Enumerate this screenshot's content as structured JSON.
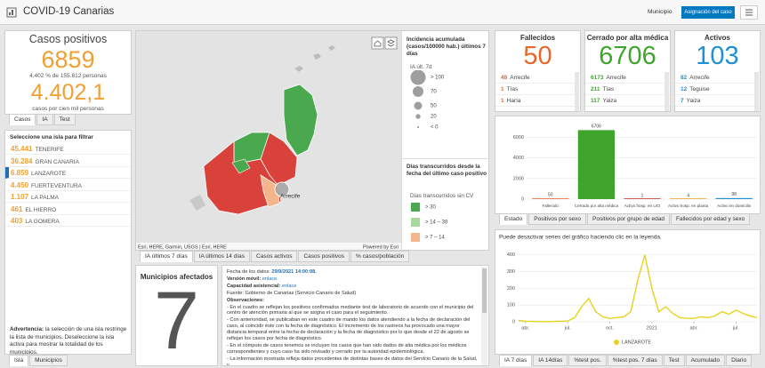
{
  "header": {
    "title": "COVID-19 Canarias",
    "filter_label": "Municipio",
    "button": "Asignación del caso"
  },
  "cases": {
    "title": "Casos positivos",
    "total": 6859,
    "percent_text": "4,402 % de 155.812 personas",
    "rate": "4.402,1",
    "rate_text": "casos por cien mil personas",
    "tabs": [
      "Casos",
      "IA",
      "Test"
    ]
  },
  "islands": {
    "title": "Seleccione una isla para filtrar",
    "selected": 2,
    "rows": [
      {
        "value": "45.441",
        "name": "TENERIFE"
      },
      {
        "value": "36.284",
        "name": "GRAN CANARIA"
      },
      {
        "value": "6.859",
        "name": "LANZAROTE"
      },
      {
        "value": "4.450",
        "name": "FUERTEVENTURA"
      },
      {
        "value": "1.107",
        "name": "LA PALMA"
      },
      {
        "value": "461",
        "name": "EL HIERRO"
      },
      {
        "value": "403",
        "name": "LA GOMERA"
      }
    ],
    "warning_label": "Advertencia:",
    "warning": "la selección de una isla restringe la lista de municipios. Deseleccione la isla activa para mostrar la totalidad de los municipios.",
    "tabs": [
      "Isla",
      "Municipios"
    ]
  },
  "map": {
    "attribution": "Esri, HERE, Garmin, USGS | Esri, HERE",
    "powered": "Powered by Esri",
    "place": "Arrecife",
    "legend_ia": {
      "title": "Incidencia acumulada (casos/100000 hab.) últimos 7 días",
      "layer": "IA últ. 7d",
      "sizes": [
        "> 100",
        "70",
        "50",
        "20",
        "< 0"
      ]
    },
    "legend_days": {
      "title": "Días transcurridos desde la fecha del último caso positivo",
      "layer": "Días transcurridos sin CV",
      "classes": [
        {
          "label": "> 30",
          "color": "#4aa84f"
        },
        {
          "label": "> 14 – 30",
          "color": "#a8d8a0"
        },
        {
          "label": "> 7 – 14",
          "color": "#f5b58c"
        }
      ]
    },
    "tabs": [
      "IA últimos 7 días",
      "IA últimos 14 días",
      "Casos activos",
      "Casos positivos",
      "% casos/población"
    ]
  },
  "municipios": {
    "title": "Municipios afectados",
    "value": 7
  },
  "info": {
    "date_label": "Fecha de los datos:",
    "date": "29/9/2021 14:00:08.",
    "mobile_label": "Versión móvil:",
    "mobile_link": "enlace.",
    "capacity_label": "Capacidad asistencial:",
    "capacity_link": "enlace",
    "source": "Fuente: Gobierno de Canarias (Servicio Canario de Salud)",
    "obs_title": "Observaciones:",
    "notes": [
      "- En el cuadro se reflejan los positivos confirmados mediante test de laboratorio de acuerdo con el municipio del centro de atención primaria al que se asigna el caso para el seguimiento.",
      "- Con anterioridad, se publicaban en este cuadro de mando los datos atendiendo a la fecha de declaración del caso, al coincidir éste con la fecha de diagnóstico. El incremento de los rastreos ha provocado una mayor distancia temporal entre la fecha de declaración y la fecha de diagnóstico por lo que desde el 22 de agosto se reflejan los casos por fecha de diagnóstico.",
      "- En el cómputo de casos tenemos se incluyen los casos que han sido dados de alta médica por los médicos correspondientes y cuyo caso ha sido revisado y cerrado por la autoridad epidemiológica.",
      "- La información mostrada refleja datos procedentes de distintas bases de datos del Servicio Canario de la Salud, y"
    ]
  },
  "stats": [
    {
      "title": "Fallecidos",
      "value": 50,
      "color": "#e8672a",
      "rows": [
        {
          "value": 48,
          "name": "Arrecife"
        },
        {
          "value": 1,
          "name": "Tías"
        },
        {
          "value": 1,
          "name": "Haría"
        }
      ]
    },
    {
      "title": "Cerrado por alta médica",
      "value": 6706,
      "color": "#3fa42c",
      "rows": [
        {
          "value": 6173,
          "name": "Arrecife"
        },
        {
          "value": 211,
          "name": "Tías"
        },
        {
          "value": 117,
          "name": "Yaiza"
        }
      ]
    },
    {
      "title": "Activos",
      "value": 103,
      "color": "#1f8fd6",
      "rows": [
        {
          "value": 82,
          "name": "Arrecife"
        },
        {
          "value": 12,
          "name": "Teguise"
        },
        {
          "value": 7,
          "name": "Yaiza"
        }
      ]
    }
  ],
  "bar_chart": {
    "type": "bar",
    "categories": [
      "Fallecido",
      "Cerrado por alta médica",
      "Activo hosp. en UCI",
      "Activo hosp. en planta",
      "Activo en domicilio"
    ],
    "values": [
      50,
      6706,
      1,
      4,
      98
    ],
    "colors": [
      "#e8672a",
      "#3fa42c",
      "#c0392b",
      "#f0a030",
      "#1f8fd6"
    ],
    "ylim": [
      0,
      7000
    ],
    "yticks": [
      0,
      2000,
      4000,
      6000
    ],
    "grid": true,
    "tabs": [
      "Estado",
      "Positivos por sexo",
      "Positivos por grupo de edad",
      "Fallecidos por edad y sexo"
    ]
  },
  "line_chart": {
    "type": "line",
    "note": "Puede desactivar series del gráfico haciendo clic en la leyenda.",
    "categories": [
      null,
      "abr.",
      null,
      null,
      null,
      null,
      null,
      "jul.",
      null,
      null,
      null,
      null,
      null,
      "oct.",
      null,
      null,
      null,
      null,
      null,
      "2021",
      null,
      null,
      null,
      null,
      null,
      "abr.",
      null,
      null,
      null,
      null,
      null,
      "jul.",
      null,
      null,
      null
    ],
    "series": [
      {
        "name": "LANZAROTE",
        "color": "#e6d21e",
        "values": [
          8,
          3,
          2,
          1,
          1,
          2,
          3,
          5,
          25,
          90,
          140,
          60,
          30,
          20,
          25,
          30,
          60,
          250,
          400,
          200,
          60,
          90,
          50,
          25,
          20,
          20,
          30,
          25,
          35,
          60,
          45,
          70,
          50,
          35,
          25
        ]
      }
    ],
    "ylim": [
      0,
      420
    ],
    "yticks": [
      0,
      100,
      200,
      300,
      400
    ],
    "grid": true,
    "tabs": [
      "IA 7 días",
      "IA 14días",
      "%test pos.",
      "%test pos. 7 días",
      "Test",
      "Acumulado",
      "Diario"
    ]
  }
}
